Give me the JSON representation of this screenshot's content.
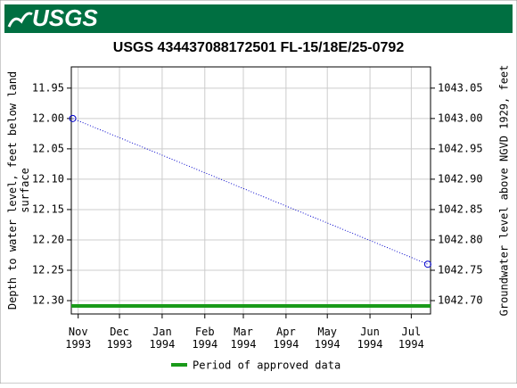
{
  "header": {
    "logo": "USGS"
  },
  "chart_data": {
    "type": "line",
    "title": "USGS 434437088172501 FL-15/18E/25-0792",
    "ylabel": [
      "Depth to water level, feet below land",
      "surface"
    ],
    "y2label": "Groundwater level above NGVD 1929, feet",
    "x": [
      "1993-10-28",
      "1994-07-13"
    ],
    "series": [
      {
        "name": "Depth to water level",
        "color": "#0000cc",
        "values": [
          12.0,
          12.24
        ]
      }
    ],
    "xlim": [
      "1993-10-27",
      "1994-07-15"
    ],
    "xticks": [
      {
        "value": "1993-11-01",
        "label": "Nov 1993"
      },
      {
        "value": "1993-12-01",
        "label": "Dec 1993"
      },
      {
        "value": "1994-01-01",
        "label": "Jan 1994"
      },
      {
        "value": "1994-02-01",
        "label": "Feb 1994"
      },
      {
        "value": "1994-03-01",
        "label": "Mar 1994"
      },
      {
        "value": "1994-04-01",
        "label": "Apr 1994"
      },
      {
        "value": "1994-05-01",
        "label": "May 1994"
      },
      {
        "value": "1994-06-01",
        "label": "Jun 1994"
      },
      {
        "value": "1994-07-01",
        "label": "Jul 1994"
      }
    ],
    "ylim": [
      12.322,
      11.915
    ],
    "yticks": [
      {
        "value": 11.95,
        "label": "11.95"
      },
      {
        "value": 12.0,
        "label": "12.00"
      },
      {
        "value": 12.05,
        "label": "12.05"
      },
      {
        "value": 12.1,
        "label": "12.10"
      },
      {
        "value": 12.15,
        "label": "12.15"
      },
      {
        "value": 12.2,
        "label": "12.20"
      },
      {
        "value": 12.25,
        "label": "12.25"
      },
      {
        "value": 12.3,
        "label": "12.30"
      }
    ],
    "y2lim": [
      1042.678,
      1043.085
    ],
    "y2ticks": [
      {
        "value": 1043.05,
        "label": "1043.05"
      },
      {
        "value": 1043.0,
        "label": "1043.00"
      },
      {
        "value": 1042.95,
        "label": "1042.95"
      },
      {
        "value": 1042.9,
        "label": "1042.90"
      },
      {
        "value": 1042.85,
        "label": "1042.85"
      },
      {
        "value": 1042.8,
        "label": "1042.80"
      },
      {
        "value": 1042.75,
        "label": "1042.75"
      },
      {
        "value": 1042.7,
        "label": "1042.70"
      }
    ],
    "grid": true,
    "approved_period": {
      "name": "Period of approved data",
      "color": "#1a9a1a",
      "start": "1993-10-27",
      "end": "1994-07-15"
    }
  }
}
